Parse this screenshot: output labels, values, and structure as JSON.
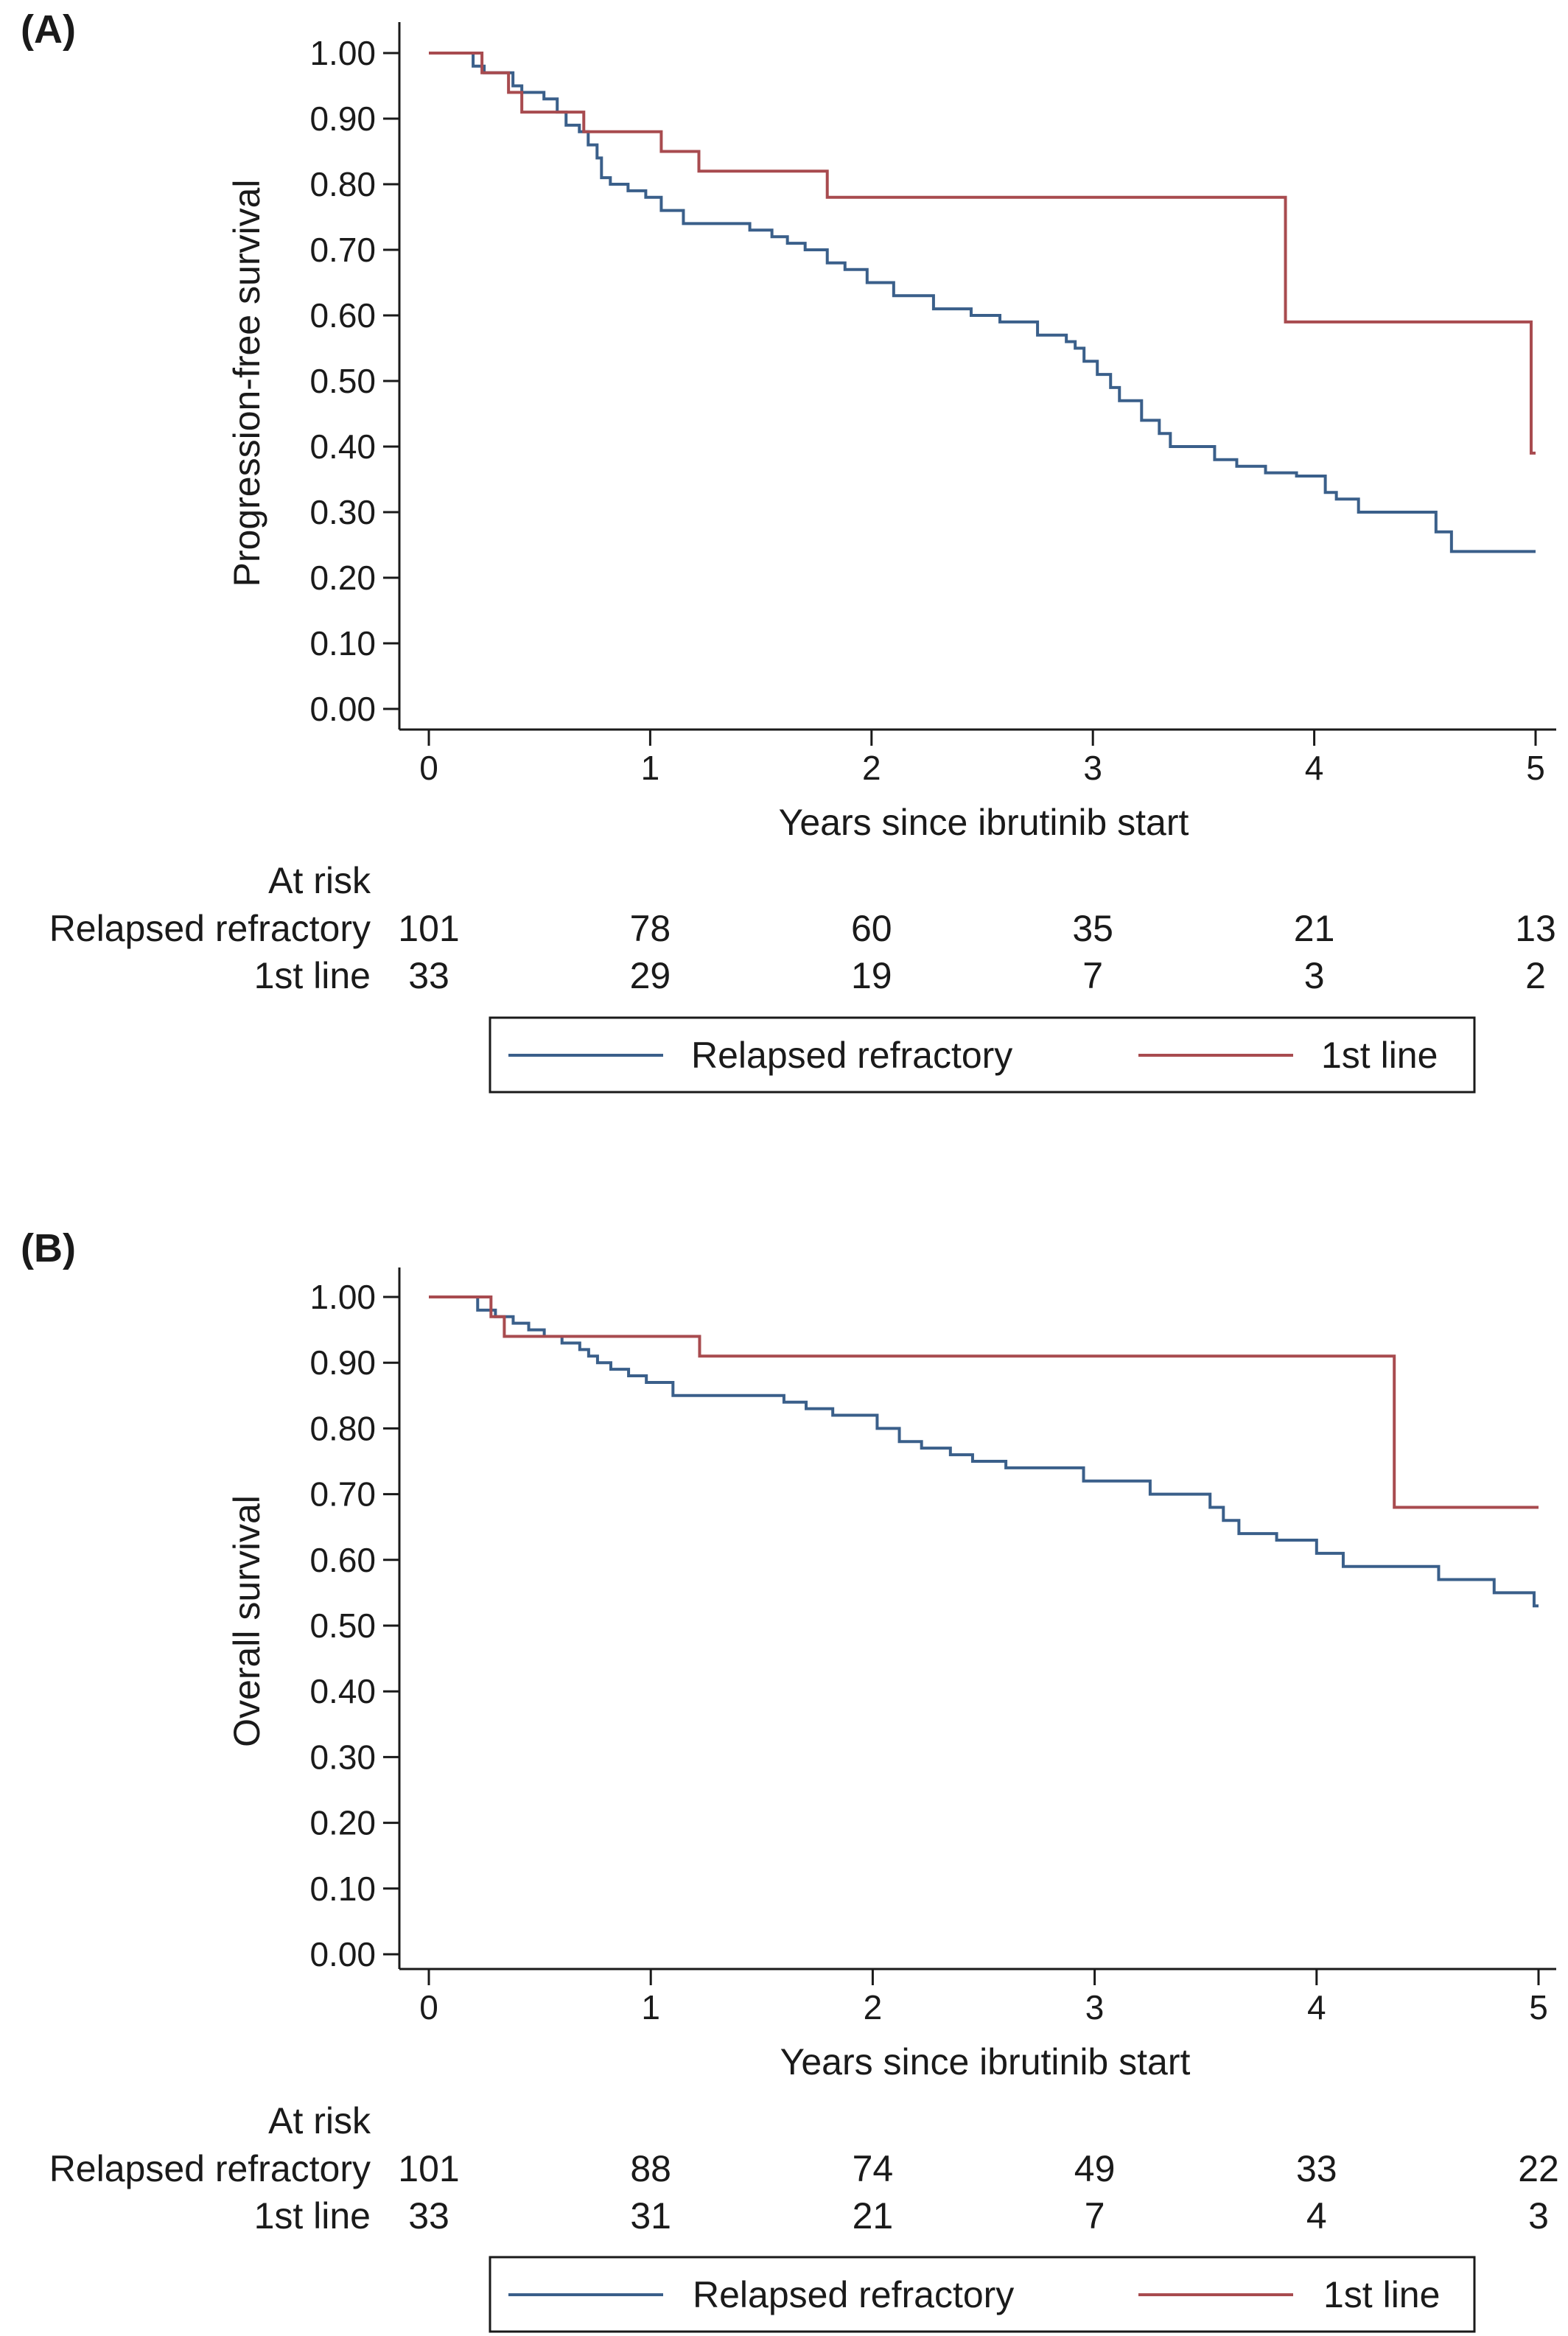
{
  "chart_data": [
    {
      "type": "line",
      "panel_label": "(A)",
      "ylabel": "Progression-free survival",
      "xlabel": "Years since ibrutinib start",
      "xlim": [
        0,
        5
      ],
      "ylim": [
        0,
        1
      ],
      "x_ticks": [
        "0",
        "1",
        "2",
        "3",
        "4",
        "5"
      ],
      "y_ticks": [
        "0.00",
        "0.10",
        "0.20",
        "0.30",
        "0.40",
        "0.50",
        "0.60",
        "0.70",
        "0.80",
        "0.90",
        "1.00"
      ],
      "grid": false,
      "series": [
        {
          "name": "Relapsed refractory",
          "color": "#3a5f8a",
          "x": [
            0,
            0.2,
            0.25,
            0.38,
            0.42,
            0.52,
            0.58,
            0.62,
            0.68,
            0.72,
            0.76,
            0.78,
            0.82,
            0.9,
            0.98,
            1.05,
            1.15,
            1.45,
            1.55,
            1.62,
            1.7,
            1.8,
            1.88,
            1.98,
            2.1,
            2.28,
            2.45,
            2.58,
            2.75,
            2.88,
            2.92,
            2.96,
            3.02,
            3.08,
            3.12,
            3.22,
            3.3,
            3.35,
            3.55,
            3.65,
            3.78,
            3.92,
            4.05,
            4.1,
            4.2,
            4.55,
            4.62,
            5
          ],
          "y": [
            1.0,
            0.98,
            0.97,
            0.95,
            0.94,
            0.93,
            0.91,
            0.89,
            0.88,
            0.86,
            0.84,
            0.81,
            0.8,
            0.79,
            0.78,
            0.76,
            0.74,
            0.73,
            0.72,
            0.71,
            0.7,
            0.68,
            0.67,
            0.65,
            0.63,
            0.61,
            0.6,
            0.59,
            0.57,
            0.56,
            0.55,
            0.53,
            0.51,
            0.49,
            0.47,
            0.44,
            0.42,
            0.4,
            0.38,
            0.37,
            0.36,
            0.355,
            0.33,
            0.32,
            0.3,
            0.27,
            0.24,
            0.24
          ]
        },
        {
          "name": "1st line",
          "color": "#a84b4f",
          "x": [
            0,
            0.24,
            0.36,
            0.42,
            0.7,
            1.05,
            1.22,
            1.8,
            3.87,
            4.98,
            5
          ],
          "y": [
            1.0,
            0.97,
            0.94,
            0.91,
            0.88,
            0.85,
            0.82,
            0.78,
            0.59,
            0.39,
            0.39
          ]
        }
      ],
      "at_risk": {
        "title": "At risk",
        "rows": [
          {
            "label": "Relapsed refractory",
            "values": [
              "101",
              "78",
              "60",
              "35",
              "21",
              "13"
            ]
          },
          {
            "label": "1st line",
            "values": [
              "33",
              "29",
              "19",
              "7",
              "3",
              "2"
            ]
          }
        ]
      },
      "legend": [
        "Relapsed refractory",
        "1st line"
      ],
      "legend_position": "bottom"
    },
    {
      "type": "line",
      "panel_label": "(B)",
      "ylabel": "Overall survival",
      "xlabel": "Years since ibrutinib start",
      "xlim": [
        0,
        5
      ],
      "ylim": [
        0,
        1
      ],
      "x_ticks": [
        "0",
        "1",
        "2",
        "3",
        "4",
        "5"
      ],
      "y_ticks": [
        "0.00",
        "0.10",
        "0.20",
        "0.30",
        "0.40",
        "0.50",
        "0.60",
        "0.70",
        "0.80",
        "0.90",
        "1.00"
      ],
      "grid": false,
      "series": [
        {
          "name": "Relapsed refractory",
          "color": "#3a5f8a",
          "x": [
            0,
            0.22,
            0.3,
            0.38,
            0.45,
            0.52,
            0.6,
            0.68,
            0.72,
            0.76,
            0.82,
            0.9,
            0.98,
            1.1,
            1.6,
            1.7,
            1.82,
            2.02,
            2.12,
            2.22,
            2.35,
            2.45,
            2.6,
            2.95,
            3.25,
            3.52,
            3.58,
            3.65,
            3.82,
            4.0,
            4.12,
            4.55,
            4.8,
            4.98,
            5
          ],
          "y": [
            1.0,
            0.98,
            0.97,
            0.96,
            0.95,
            0.94,
            0.93,
            0.92,
            0.91,
            0.9,
            0.89,
            0.88,
            0.87,
            0.85,
            0.84,
            0.83,
            0.82,
            0.8,
            0.78,
            0.77,
            0.76,
            0.75,
            0.74,
            0.72,
            0.7,
            0.68,
            0.66,
            0.64,
            0.63,
            0.61,
            0.59,
            0.57,
            0.55,
            0.53,
            0.53
          ]
        },
        {
          "name": "1st line",
          "color": "#a84b4f",
          "x": [
            0,
            0.28,
            0.34,
            1.22,
            4.35,
            5
          ],
          "y": [
            1.0,
            0.97,
            0.94,
            0.91,
            0.68,
            0.68
          ]
        }
      ],
      "at_risk": {
        "title": "At risk",
        "rows": [
          {
            "label": "Relapsed refractory",
            "values": [
              "101",
              "88",
              "74",
              "49",
              "33",
              "22"
            ]
          },
          {
            "label": "1st line",
            "values": [
              "33",
              "31",
              "21",
              "7",
              "4",
              "3"
            ]
          }
        ]
      },
      "legend": [
        "Relapsed refractory",
        "1st line"
      ],
      "legend_position": "bottom"
    }
  ]
}
